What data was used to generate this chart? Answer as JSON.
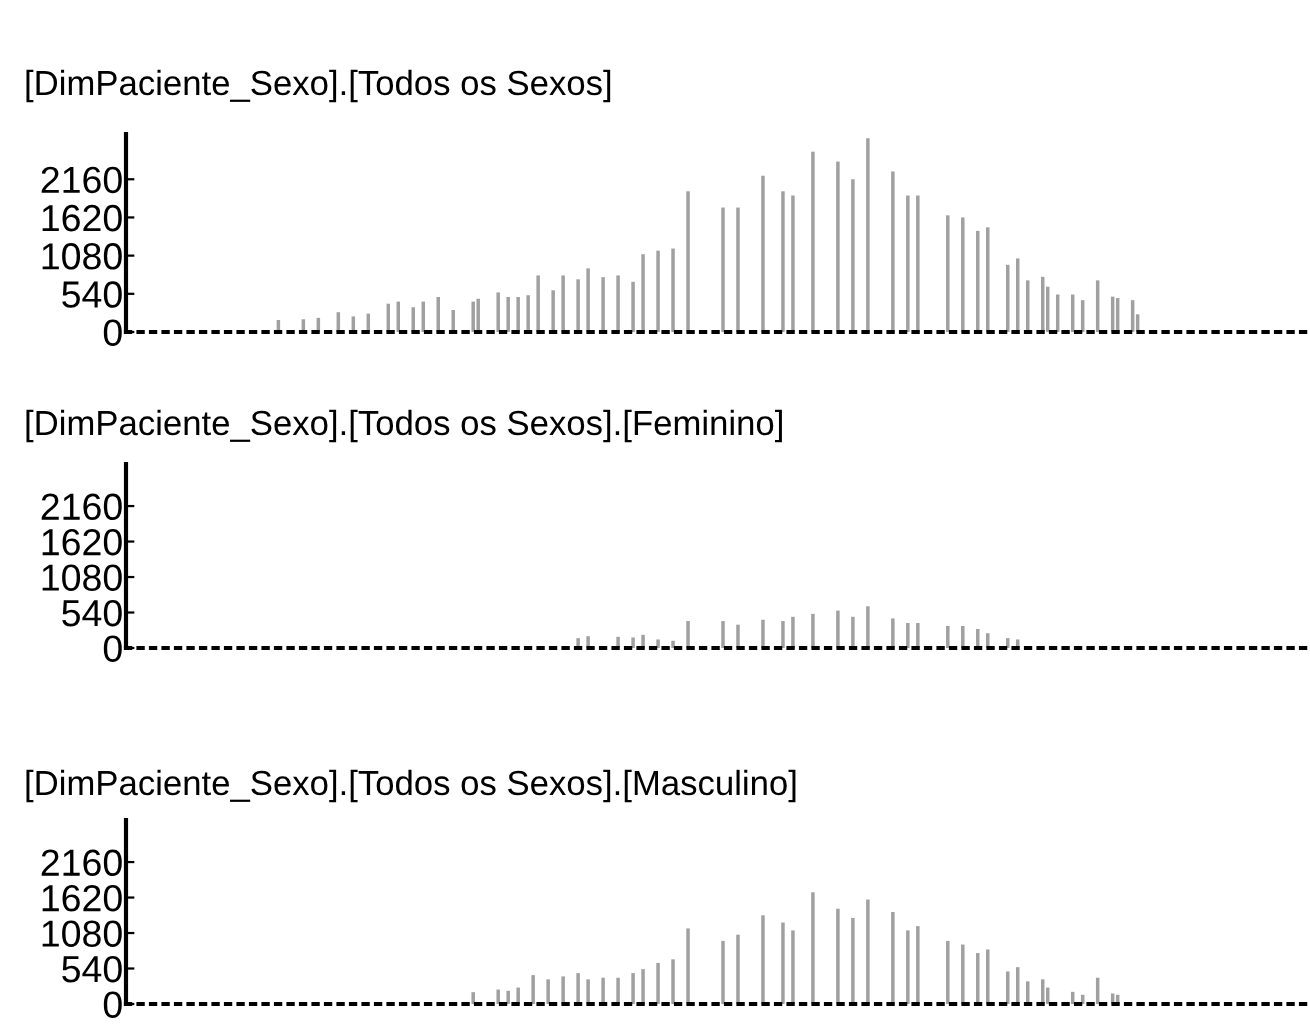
{
  "chart_data": [
    {
      "type": "bar",
      "title": "[DimPaciente_Sexo].[Todos os Sexos]",
      "color": "#a0a0a0",
      "ylim": [
        0,
        2800
      ],
      "yticks": [
        0,
        540,
        1080,
        1620,
        2160
      ],
      "tick_labels": "y",
      "categories": [
        null,
        null,
        null,
        null,
        null,
        null,
        null,
        null,
        null,
        null,
        null,
        null,
        null,
        null,
        null,
        null,
        null,
        null,
        null,
        null,
        null,
        null,
        null,
        null,
        null,
        null,
        null,
        null,
        null,
        null,
        null,
        null,
        null,
        null,
        null,
        null,
        null,
        null,
        null,
        null,
        null,
        null,
        null,
        null,
        null,
        null,
        null,
        null,
        null,
        null,
        null,
        null,
        null,
        null,
        null,
        null,
        null,
        null,
        null,
        null,
        null,
        null,
        null,
        null,
        null,
        null,
        null,
        null,
        null,
        null,
        null,
        null,
        null,
        null,
        null,
        null,
        null,
        null,
        null,
        null,
        null,
        null,
        null,
        null,
        null,
        null,
        null,
        null,
        null,
        null,
        null,
        null,
        null,
        null,
        null,
        null,
        null,
        null,
        null,
        null,
        null,
        null,
        null,
        null,
        null,
        null,
        null,
        null,
        null,
        null,
        null,
        null,
        null,
        null,
        null,
        null,
        null,
        null,
        null,
        null,
        null,
        null,
        null,
        null,
        null,
        null,
        null,
        null,
        null,
        null,
        null,
        null,
        null,
        null,
        null,
        null,
        null,
        null,
        null,
        null,
        null,
        null,
        null,
        null,
        null,
        null,
        null,
        null,
        null,
        null,
        null,
        null,
        null,
        null,
        null,
        null,
        null,
        null,
        null,
        null,
        null,
        null,
        null,
        null,
        null,
        null,
        null,
        null,
        null,
        null,
        null,
        null,
        null,
        null,
        null,
        null,
        null,
        null,
        null,
        null,
        null,
        null,
        null,
        null,
        null,
        null,
        null,
        null,
        null,
        null,
        null,
        null,
        null,
        null,
        null,
        null,
        null,
        null,
        null,
        null,
        null,
        null,
        null,
        null,
        null,
        null,
        null,
        null,
        null,
        null,
        null,
        null,
        null,
        null,
        null,
        null,
        null,
        null,
        null,
        null,
        null,
        null,
        null,
        null,
        null,
        null,
        null,
        null,
        null,
        null,
        null,
        null,
        null,
        null,
        null,
        null,
        null
      ],
      "values": [
        null,
        null,
        null,
        null,
        null,
        null,
        null,
        null,
        null,
        null,
        null,
        null,
        null,
        null,
        null,
        null,
        null,
        null,
        null,
        null,
        null,
        null,
        null,
        null,
        null,
        null,
        null,
        null,
        null,
        null,
        170,
        null,
        null,
        null,
        null,
        180,
        null,
        null,
        200,
        null,
        null,
        null,
        280,
        null,
        null,
        220,
        null,
        null,
        260,
        null,
        null,
        null,
        400,
        null,
        430,
        null,
        null,
        350,
        null,
        430,
        null,
        null,
        495,
        null,
        null,
        310,
        null,
        null,
        null,
        430,
        470,
        null,
        null,
        null,
        560,
        null,
        495,
        null,
        495,
        null,
        520,
        null,
        800,
        null,
        null,
        590,
        null,
        800,
        null,
        null,
        745,
        null,
        900,
        null,
        null,
        775,
        null,
        null,
        800,
        null,
        null,
        710,
        null,
        1100,
        null,
        null,
        1150,
        null,
        null,
        1180,
        null,
        null,
        1990,
        null,
        null,
        null,
        null,
        null,
        null,
        1760,
        null,
        null,
        1760,
        null,
        null,
        null,
        null,
        2210,
        null,
        null,
        null,
        1990,
        null,
        1930,
        null,
        null,
        null,
        2550,
        null,
        null,
        null,
        null,
        2410,
        null,
        null,
        2160,
        null,
        null,
        2740,
        null,
        null,
        null,
        null,
        2270,
        null,
        null,
        1930,
        null,
        1930,
        null,
        null,
        null,
        null,
        null,
        1650,
        null,
        null,
        1620,
        null,
        null,
        1430,
        null,
        1480,
        null,
        null,
        null,
        950,
        null,
        1040,
        null,
        730,
        null,
        null,
        780,
        640,
        null,
        530,
        null,
        null,
        530,
        null,
        450,
        null,
        null,
        730,
        null,
        null,
        500,
        480,
        null,
        null,
        450,
        250,
        null,
        null,
        null,
        null,
        null,
        null,
        null,
        null,
        null,
        null,
        null,
        null,
        null,
        null,
        null,
        null,
        null,
        null,
        null,
        null,
        null,
        null,
        null,
        null,
        null,
        null,
        null,
        null,
        null,
        null,
        null,
        null,
        null,
        null
      ]
    },
    {
      "type": "bar",
      "title": "[DimPaciente_Sexo].[Todos os Sexos].[Feminino]",
      "color": "#a0a0a0",
      "ylim": [
        0,
        2800
      ],
      "yticks": [
        0,
        540,
        1080,
        1620,
        2160
      ],
      "tick_labels": "y",
      "categories": [
        null,
        null,
        null,
        null,
        null,
        null,
        null,
        null,
        null,
        null,
        null,
        null,
        null,
        null,
        null,
        null,
        null,
        null,
        null,
        null,
        null,
        null,
        null,
        null,
        null,
        null,
        null,
        null,
        null,
        null,
        null,
        null,
        null,
        null,
        null,
        null,
        null,
        null,
        null,
        null,
        null,
        null,
        null,
        null,
        null,
        null,
        null,
        null,
        null,
        null,
        null,
        null,
        null,
        null,
        null,
        null,
        null,
        null,
        null,
        null,
        null,
        null,
        null,
        null,
        null,
        null,
        null,
        null,
        null,
        null,
        null,
        null,
        null,
        null,
        null,
        null,
        null,
        null,
        null,
        null,
        null,
        null,
        null,
        null,
        null,
        null,
        null,
        null,
        null,
        null,
        null,
        null,
        null,
        null,
        null,
        null,
        null,
        null,
        null,
        null,
        null,
        null,
        null,
        null,
        null,
        null,
        null,
        null,
        null,
        null,
        null,
        null,
        null,
        null,
        null,
        null,
        null,
        null,
        null,
        null,
        null,
        null,
        null,
        null,
        null,
        null,
        null,
        null,
        null,
        null,
        null,
        null,
        null,
        null,
        null,
        null,
        null,
        null,
        null,
        null,
        null,
        null,
        null,
        null,
        null,
        null,
        null,
        null,
        null,
        null,
        null,
        null,
        null,
        null,
        null,
        null,
        null,
        null,
        null,
        null,
        null,
        null,
        null,
        null,
        null,
        null,
        null,
        null,
        null,
        null,
        null,
        null,
        null,
        null,
        null,
        null,
        null,
        null,
        null,
        null,
        null,
        null,
        null,
        null,
        null,
        null,
        null,
        null,
        null,
        null,
        null,
        null,
        null,
        null,
        null,
        null,
        null,
        null,
        null,
        null,
        null,
        null,
        null,
        null,
        null,
        null,
        null,
        null,
        null,
        null,
        null,
        null,
        null,
        null,
        null,
        null,
        null,
        null,
        null,
        null,
        null,
        null,
        null,
        null,
        null,
        null,
        null,
        null,
        null,
        null,
        null,
        null,
        null,
        null,
        null,
        null,
        null
      ],
      "values": [
        null,
        null,
        null,
        null,
        null,
        null,
        null,
        null,
        null,
        null,
        null,
        null,
        null,
        null,
        null,
        null,
        null,
        null,
        null,
        null,
        null,
        null,
        null,
        null,
        null,
        null,
        null,
        null,
        null,
        null,
        null,
        null,
        null,
        null,
        null,
        null,
        null,
        null,
        null,
        null,
        null,
        null,
        null,
        null,
        null,
        null,
        null,
        null,
        null,
        null,
        null,
        null,
        null,
        null,
        null,
        null,
        null,
        null,
        null,
        null,
        null,
        null,
        null,
        null,
        null,
        null,
        null,
        null,
        null,
        null,
        null,
        null,
        null,
        null,
        null,
        null,
        null,
        null,
        null,
        null,
        null,
        null,
        null,
        null,
        null,
        null,
        null,
        null,
        null,
        null,
        150,
        null,
        180,
        null,
        null,
        null,
        null,
        null,
        170,
        null,
        null,
        160,
        null,
        200,
        null,
        null,
        130,
        null,
        null,
        110,
        null,
        null,
        410,
        null,
        null,
        null,
        null,
        null,
        null,
        410,
        null,
        null,
        355,
        null,
        null,
        null,
        null,
        430,
        null,
        null,
        null,
        410,
        null,
        475,
        null,
        null,
        null,
        520,
        null,
        null,
        null,
        null,
        570,
        null,
        null,
        475,
        null,
        null,
        635,
        null,
        null,
        null,
        null,
        450,
        null,
        null,
        380,
        null,
        380,
        null,
        null,
        null,
        null,
        null,
        335,
        null,
        null,
        335,
        null,
        null,
        290,
        null,
        225,
        null,
        null,
        null,
        150,
        null,
        130,
        null,
        null,
        null,
        null,
        null,
        null,
        null,
        null,
        null,
        null,
        null,
        null,
        null,
        null,
        null,
        null,
        null,
        null,
        null,
        null,
        null,
        null,
        null,
        null,
        null,
        null,
        null,
        null,
        null,
        null,
        null,
        null,
        null,
        null,
        null,
        null,
        null,
        null,
        null,
        null,
        null,
        null,
        null,
        null,
        null,
        null,
        null,
        null,
        null,
        null,
        null,
        null,
        null,
        null,
        null,
        null,
        null,
        null
      ]
    },
    {
      "type": "bar",
      "title": "[DimPaciente_Sexo].[Todos os Sexos].[Masculino]",
      "color": "#a0a0a0",
      "ylim": [
        0,
        2800
      ],
      "yticks": [
        0,
        540,
        1080,
        1620,
        2160
      ],
      "tick_labels": "y",
      "categories": [
        null,
        null,
        null,
        null,
        null,
        null,
        null,
        null,
        null,
        null,
        null,
        null,
        null,
        null,
        null,
        null,
        null,
        null,
        null,
        null,
        null,
        null,
        null,
        null,
        null,
        null,
        null,
        null,
        null,
        null,
        null,
        null,
        null,
        null,
        null,
        null,
        null,
        null,
        null,
        null,
        null,
        null,
        null,
        null,
        null,
        null,
        null,
        null,
        null,
        null,
        null,
        null,
        null,
        null,
        null,
        null,
        null,
        null,
        null,
        null,
        null,
        null,
        null,
        null,
        null,
        null,
        null,
        null,
        null,
        null,
        null,
        null,
        null,
        null,
        null,
        null,
        null,
        null,
        null,
        null,
        null,
        null,
        null,
        null,
        null,
        null,
        null,
        null,
        null,
        null,
        null,
        null,
        null,
        null,
        null,
        null,
        null,
        null,
        null,
        null,
        null,
        null,
        null,
        null,
        null,
        null,
        null,
        null,
        null,
        null,
        null,
        null,
        null,
        null,
        null,
        null,
        null,
        null,
        null,
        null,
        null,
        null,
        null,
        null,
        null,
        null,
        null,
        null,
        null,
        null,
        null,
        null,
        null,
        null,
        null,
        null,
        null,
        null,
        null,
        null,
        null,
        null,
        null,
        null,
        null,
        null,
        null,
        null,
        null,
        null,
        null,
        null,
        null,
        null,
        null,
        null,
        null,
        null,
        null,
        null,
        null,
        null,
        null,
        null,
        null,
        null,
        null,
        null,
        null,
        null,
        null,
        null,
        null,
        null,
        null,
        null,
        null,
        null,
        null,
        null,
        null,
        null,
        null,
        null,
        null,
        null,
        null,
        null,
        null,
        null,
        null,
        null,
        null,
        null,
        null,
        null,
        null,
        null,
        null,
        null,
        null,
        null,
        null,
        null,
        null,
        null,
        null,
        null,
        null,
        null,
        null,
        null,
        null,
        null,
        null,
        null,
        null,
        null,
        null,
        null,
        null,
        null,
        null,
        null,
        null,
        null,
        null,
        null,
        null,
        null,
        null,
        null,
        null,
        null,
        null,
        null,
        null
      ],
      "values": [
        null,
        null,
        null,
        null,
        null,
        null,
        null,
        null,
        null,
        null,
        null,
        null,
        null,
        null,
        null,
        null,
        null,
        null,
        null,
        null,
        null,
        null,
        null,
        null,
        null,
        null,
        null,
        null,
        null,
        null,
        null,
        null,
        null,
        null,
        null,
        null,
        null,
        null,
        null,
        null,
        null,
        null,
        null,
        null,
        null,
        null,
        null,
        null,
        null,
        null,
        null,
        null,
        null,
        null,
        null,
        null,
        null,
        null,
        null,
        null,
        null,
        null,
        null,
        null,
        null,
        null,
        null,
        null,
        null,
        180,
        null,
        null,
        null,
        null,
        220,
        null,
        200,
        null,
        250,
        null,
        null,
        440,
        null,
        null,
        375,
        null,
        null,
        420,
        null,
        null,
        470,
        null,
        375,
        null,
        null,
        400,
        null,
        null,
        400,
        null,
        null,
        470,
        null,
        530,
        null,
        null,
        625,
        null,
        null,
        680,
        null,
        null,
        1150,
        null,
        null,
        null,
        null,
        null,
        null,
        960,
        null,
        null,
        1055,
        null,
        null,
        null,
        null,
        1350,
        null,
        null,
        null,
        1240,
        null,
        1120,
        null,
        null,
        null,
        1700,
        null,
        null,
        null,
        null,
        1450,
        null,
        null,
        1310,
        null,
        null,
        1590,
        null,
        null,
        null,
        null,
        1400,
        null,
        null,
        1120,
        null,
        1185,
        null,
        null,
        null,
        null,
        null,
        960,
        null,
        null,
        905,
        null,
        null,
        775,
        null,
        830,
        null,
        null,
        null,
        495,
        null,
        560,
        null,
        345,
        null,
        null,
        375,
        250,
        null,
        null,
        null,
        null,
        185,
        null,
        140,
        null,
        null,
        400,
        null,
        null,
        160,
        140,
        null,
        null,
        null,
        null,
        null,
        null,
        null,
        null,
        null,
        null,
        null,
        null,
        null,
        null,
        null,
        null,
        null,
        null,
        null,
        null,
        null,
        null,
        null,
        null,
        null,
        null,
        null,
        null,
        null,
        null,
        null,
        null,
        null,
        null,
        null,
        null,
        null,
        null
      ]
    }
  ]
}
